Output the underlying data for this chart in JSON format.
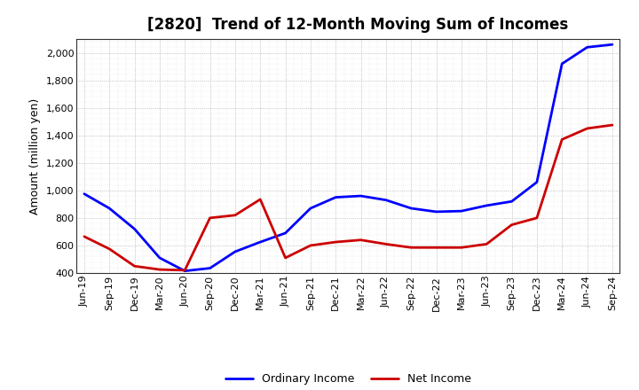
{
  "title": "[2820]  Trend of 12-Month Moving Sum of Incomes",
  "ylabel": "Amount (million yen)",
  "ylim": [
    400,
    2100
  ],
  "yticks": [
    400,
    600,
    800,
    1000,
    1200,
    1400,
    1600,
    1800,
    2000
  ],
  "background_color": "#ffffff",
  "plot_bg_color": "#ffffff",
  "ordinary_income_color": "#0000ff",
  "net_income_color": "#cc0000",
  "line_width": 2.0,
  "x_labels": [
    "Jun-19",
    "Sep-19",
    "Dec-19",
    "Mar-20",
    "Jun-20",
    "Sep-20",
    "Dec-20",
    "Mar-21",
    "Jun-21",
    "Sep-21",
    "Dec-21",
    "Mar-22",
    "Jun-22",
    "Sep-22",
    "Dec-22",
    "Mar-23",
    "Jun-23",
    "Sep-23",
    "Dec-23",
    "Mar-24",
    "Jun-24",
    "Sep-24"
  ],
  "ordinary_income": [
    975,
    870,
    720,
    510,
    415,
    435,
    555,
    625,
    690,
    870,
    950,
    960,
    930,
    870,
    845,
    850,
    890,
    920,
    1060,
    1920,
    2040,
    2060
  ],
  "net_income": [
    665,
    575,
    450,
    425,
    420,
    800,
    820,
    935,
    510,
    600,
    625,
    640,
    610,
    585,
    585,
    585,
    610,
    750,
    800,
    1370,
    1450,
    1475
  ],
  "legend_labels": [
    "Ordinary Income",
    "Net Income"
  ],
  "title_fontsize": 12,
  "ylabel_fontsize": 9,
  "tick_fontsize": 8
}
